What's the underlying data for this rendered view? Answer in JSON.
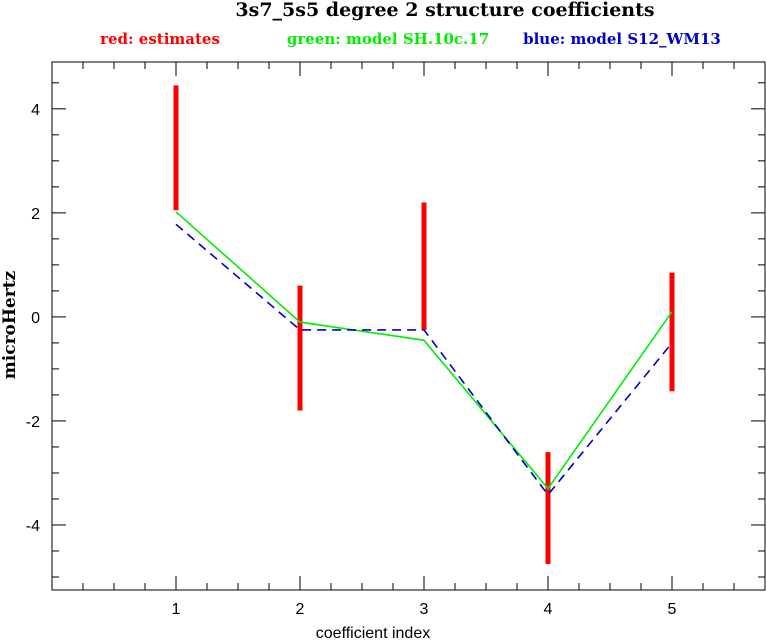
{
  "chart_data": {
    "type": "line",
    "title": "3s7_5s5 degree 2 structure coefficients",
    "legend": {
      "red": {
        "text": "red: estimates",
        "color": "#ff0000"
      },
      "green": {
        "text": "green: model SH.10c.17",
        "color": "#00ee00"
      },
      "blue": {
        "text": "blue: model S12_WM13",
        "color": "#0000cc"
      }
    },
    "xlabel": "coefficient index",
    "ylabel": "microHertz",
    "xlim": [
      0.0,
      5.75
    ],
    "ylim": [
      -5.25,
      4.9
    ],
    "x_ticks": [
      1,
      2,
      3,
      4,
      5
    ],
    "x_tick_labels": [
      "1",
      "2",
      "3",
      "4",
      "5"
    ],
    "x_minor_step": 0.25,
    "y_ticks": [
      -4,
      -2,
      0,
      2,
      4
    ],
    "y_tick_labels": [
      "-4",
      "-2",
      "0",
      "2",
      "4"
    ],
    "y_minor_step": 0.5,
    "grid": false,
    "x": [
      1,
      2,
      3,
      4,
      5
    ],
    "estimates": {
      "low": [
        2.05,
        -1.8,
        -0.25,
        -4.75,
        -1.43
      ],
      "high": [
        4.45,
        0.6,
        2.2,
        -2.6,
        0.85
      ],
      "color": "#ff0000"
    },
    "series": [
      {
        "values": [
          2.02,
          -0.1,
          -0.45,
          -3.3,
          0.1
        ],
        "color": "#00ee00",
        "style": "solid"
      },
      {
        "values": [
          1.78,
          -0.25,
          -0.25,
          -3.42,
          -0.5
        ],
        "color": "#0000cc",
        "style": "dashed"
      }
    ]
  }
}
